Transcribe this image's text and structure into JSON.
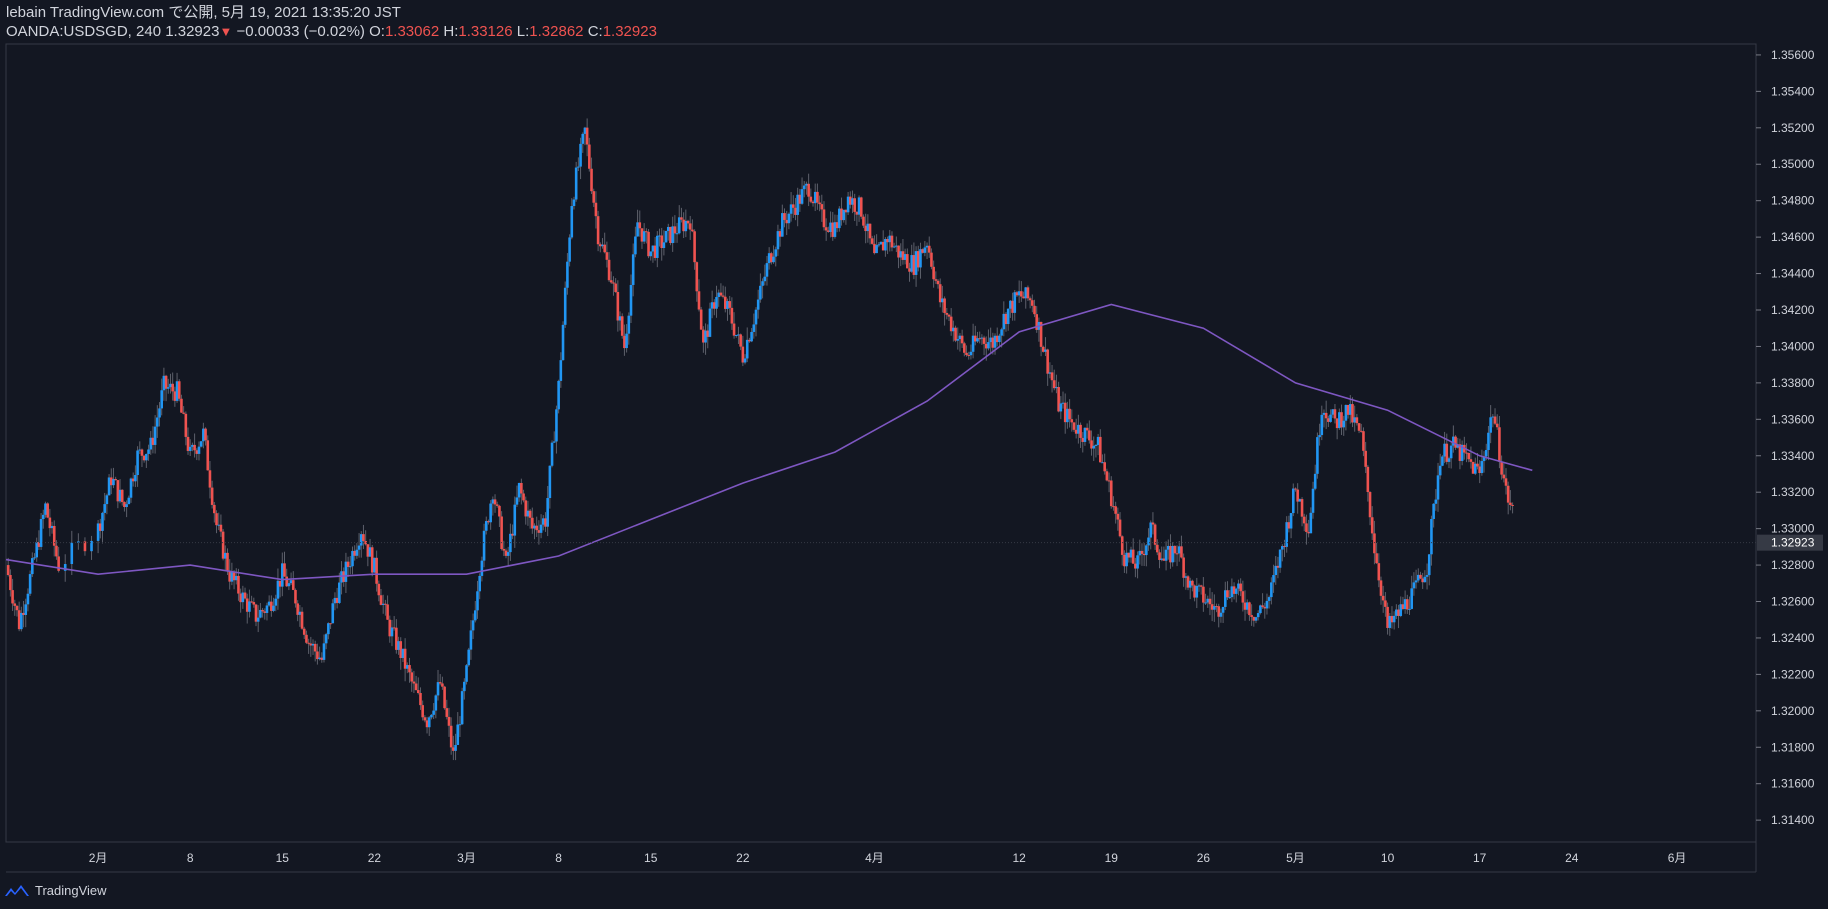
{
  "header": {
    "published_line": "lebain TradingView.com で公開, 5月 19, 2021 13:35:20 JST",
    "symbol": "OANDA:USDSGD, 240",
    "last": "1.32923",
    "change": "−0.00033 (−0.02%)",
    "o_label": "O:",
    "o_value": "1.33062",
    "h_label": "H:",
    "h_value": "1.33126",
    "l_label": "L:",
    "l_value": "1.32862",
    "c_label": "C:",
    "c_value": "1.32923",
    "down_arrow": "▼"
  },
  "footer": {
    "brand": "TradingView",
    "logo_icon": "tradingview-logo-icon"
  },
  "colors": {
    "background": "#131722",
    "up": "#2196f3",
    "down": "#ef5350",
    "ma": "#7e57c2",
    "axis_text": "#d1d4dc",
    "border": "#363a45"
  },
  "chart_data": {
    "type": "candlestick",
    "symbol": "OANDA:USDSGD",
    "interval": "240",
    "ylim": [
      1.3128,
      1.3566
    ],
    "y_ticks": [
      "1.35600",
      "1.35400",
      "1.35200",
      "1.35000",
      "1.34800",
      "1.34600",
      "1.34400",
      "1.34200",
      "1.34000",
      "1.33800",
      "1.33600",
      "1.33400",
      "1.33200",
      "1.33000",
      "1.32800",
      "1.32600",
      "1.32400",
      "1.32200",
      "1.32000",
      "1.31800",
      "1.31600",
      "1.31400"
    ],
    "last_price_label": "1.32923",
    "x_ticks": [
      {
        "label": "2月",
        "date": "2021-02-01"
      },
      {
        "label": "8",
        "date": "2021-02-08"
      },
      {
        "label": "15",
        "date": "2021-02-15"
      },
      {
        "label": "22",
        "date": "2021-02-22"
      },
      {
        "label": "3月",
        "date": "2021-03-01"
      },
      {
        "label": "8",
        "date": "2021-03-08"
      },
      {
        "label": "15",
        "date": "2021-03-15"
      },
      {
        "label": "22",
        "date": "2021-03-22"
      },
      {
        "label": "4月",
        "date": "2021-04-01"
      },
      {
        "label": "12",
        "date": "2021-04-12"
      },
      {
        "label": "19",
        "date": "2021-04-19"
      },
      {
        "label": "26",
        "date": "2021-04-26"
      },
      {
        "label": "5月",
        "date": "2021-05-03"
      },
      {
        "label": "10",
        "date": "2021-05-10"
      },
      {
        "label": "17",
        "date": "2021-05-17"
      },
      {
        "label": "24",
        "date": "2021-05-24"
      },
      {
        "label": "6月",
        "date": "2021-06-01"
      }
    ],
    "path": [
      [
        "2021-01-25",
        1.328
      ],
      [
        "2021-01-26",
        1.3248
      ],
      [
        "2021-01-27",
        1.3278
      ],
      [
        "2021-01-28",
        1.3312
      ],
      [
        "2021-01-29",
        1.328
      ],
      [
        "2021-02-01",
        1.33
      ],
      [
        "2021-02-02",
        1.3328
      ],
      [
        "2021-02-03",
        1.3312
      ],
      [
        "2021-02-04",
        1.334
      ],
      [
        "2021-02-05",
        1.3345
      ],
      [
        "2021-02-06",
        1.3378
      ],
      [
        "2021-02-07",
        1.3375
      ],
      [
        "2021-02-08",
        1.334
      ],
      [
        "2021-02-09",
        1.3352
      ],
      [
        "2021-02-10",
        1.3302
      ],
      [
        "2021-02-11",
        1.3275
      ],
      [
        "2021-02-12",
        1.3262
      ],
      [
        "2021-02-13",
        1.3252
      ],
      [
        "2021-02-14",
        1.3258
      ],
      [
        "2021-02-15",
        1.3275
      ],
      [
        "2021-02-16",
        1.3262
      ],
      [
        "2021-02-17",
        1.3238
      ],
      [
        "2021-02-18",
        1.3228
      ],
      [
        "2021-02-19",
        1.3262
      ],
      [
        "2021-02-20",
        1.328
      ],
      [
        "2021-02-21",
        1.33
      ],
      [
        "2021-02-22",
        1.3278
      ],
      [
        "2021-02-23",
        1.3248
      ],
      [
        "2021-02-24",
        1.3232
      ],
      [
        "2021-02-25",
        1.3212
      ],
      [
        "2021-02-26",
        1.3195
      ],
      [
        "2021-02-27",
        1.3215
      ],
      [
        "2021-02-28",
        1.3175
      ],
      [
        "2021-03-01",
        1.322
      ],
      [
        "2021-03-02",
        1.328
      ],
      [
        "2021-03-03",
        1.3322
      ],
      [
        "2021-03-04",
        1.328
      ],
      [
        "2021-03-05",
        1.3322
      ],
      [
        "2021-03-06",
        1.33
      ],
      [
        "2021-03-07",
        1.3305
      ],
      [
        "2021-03-08",
        1.3378
      ],
      [
        "2021-03-09",
        1.348
      ],
      [
        "2021-03-10",
        1.3518
      ],
      [
        "2021-03-11",
        1.3462
      ],
      [
        "2021-03-12",
        1.3438
      ],
      [
        "2021-03-13",
        1.34
      ],
      [
        "2021-03-14",
        1.3468
      ],
      [
        "2021-03-15",
        1.3452
      ],
      [
        "2021-03-16",
        1.3458
      ],
      [
        "2021-03-17",
        1.3465
      ],
      [
        "2021-03-18",
        1.347
      ],
      [
        "2021-03-19",
        1.34
      ],
      [
        "2021-03-20",
        1.343
      ],
      [
        "2021-03-21",
        1.3418
      ],
      [
        "2021-03-22",
        1.3395
      ],
      [
        "2021-03-23",
        1.342
      ],
      [
        "2021-03-24",
        1.3448
      ],
      [
        "2021-03-25",
        1.3468
      ],
      [
        "2021-03-26",
        1.3478
      ],
      [
        "2021-03-27",
        1.3488
      ],
      [
        "2021-03-28",
        1.347
      ],
      [
        "2021-03-29",
        1.3465
      ],
      [
        "2021-03-30",
        1.3482
      ],
      [
        "2021-03-31",
        1.3475
      ],
      [
        "2021-04-01",
        1.3448
      ],
      [
        "2021-04-02",
        1.346
      ],
      [
        "2021-04-03",
        1.345
      ],
      [
        "2021-04-04",
        1.3445
      ],
      [
        "2021-04-05",
        1.3458
      ],
      [
        "2021-04-06",
        1.3425
      ],
      [
        "2021-04-07",
        1.341
      ],
      [
        "2021-04-08",
        1.3395
      ],
      [
        "2021-04-09",
        1.3405
      ],
      [
        "2021-04-10",
        1.3402
      ],
      [
        "2021-04-11",
        1.3418
      ],
      [
        "2021-04-12",
        1.3428
      ],
      [
        "2021-04-13",
        1.3425
      ],
      [
        "2021-04-14",
        1.3395
      ],
      [
        "2021-04-15",
        1.3368
      ],
      [
        "2021-04-16",
        1.3358
      ],
      [
        "2021-04-17",
        1.3352
      ],
      [
        "2021-04-18",
        1.3345
      ],
      [
        "2021-04-19",
        1.3318
      ],
      [
        "2021-04-20",
        1.3285
      ],
      [
        "2021-04-21",
        1.328
      ],
      [
        "2021-04-22",
        1.33
      ],
      [
        "2021-04-23",
        1.3282
      ],
      [
        "2021-04-24",
        1.329
      ],
      [
        "2021-04-25",
        1.3268
      ],
      [
        "2021-04-26",
        1.3262
      ],
      [
        "2021-04-27",
        1.3255
      ],
      [
        "2021-04-28",
        1.3268
      ],
      [
        "2021-04-29",
        1.3262
      ],
      [
        "2021-04-30",
        1.3252
      ],
      [
        "2021-05-01",
        1.3262
      ],
      [
        "2021-05-02",
        1.329
      ],
      [
        "2021-05-03",
        1.3322
      ],
      [
        "2021-05-04",
        1.33
      ],
      [
        "2021-05-05",
        1.3368
      ],
      [
        "2021-05-06",
        1.3358
      ],
      [
        "2021-05-07",
        1.3365
      ],
      [
        "2021-05-08",
        1.335
      ],
      [
        "2021-05-09",
        1.329
      ],
      [
        "2021-05-10",
        1.3245
      ],
      [
        "2021-05-11",
        1.3255
      ],
      [
        "2021-05-12",
        1.3265
      ],
      [
        "2021-05-13",
        1.328
      ],
      [
        "2021-05-14",
        1.334
      ],
      [
        "2021-05-15",
        1.3345
      ],
      [
        "2021-05-16",
        1.3338
      ],
      [
        "2021-05-17",
        1.333
      ],
      [
        "2021-05-18",
        1.3365
      ],
      [
        "2021-05-19",
        1.332
      ],
      [
        "2021-05-20",
        1.3298
      ],
      [
        "2021-05-21",
        1.3294
      ]
    ],
    "ma_series": [
      [
        "2021-01-25",
        1.3283
      ],
      [
        "2021-02-01",
        1.3275
      ],
      [
        "2021-02-08",
        1.328
      ],
      [
        "2021-02-15",
        1.3272
      ],
      [
        "2021-02-22",
        1.3275
      ],
      [
        "2021-03-01",
        1.3275
      ],
      [
        "2021-03-08",
        1.3285
      ],
      [
        "2021-03-15",
        1.3305
      ],
      [
        "2021-03-22",
        1.3325
      ],
      [
        "2021-03-29",
        1.3342
      ],
      [
        "2021-04-05",
        1.337
      ],
      [
        "2021-04-12",
        1.3408
      ],
      [
        "2021-04-19",
        1.3423
      ],
      [
        "2021-04-26",
        1.341
      ],
      [
        "2021-05-03",
        1.338
      ],
      [
        "2021-05-10",
        1.3365
      ],
      [
        "2021-05-17",
        1.334
      ],
      [
        "2021-05-21",
        1.3332
      ]
    ],
    "x_start": "2021-01-25",
    "x_end": "2021-06-07"
  }
}
